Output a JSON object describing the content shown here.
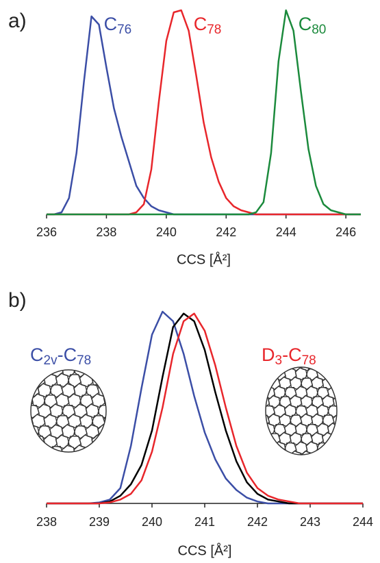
{
  "chart_data": [
    {
      "type": "line",
      "label": "a)",
      "xlabel": "CCS [Å²]",
      "xlim": [
        236,
        246.5
      ],
      "ylim": [
        0,
        1
      ],
      "xticks": [
        236,
        238,
        240,
        242,
        244,
        246
      ],
      "x": [
        236,
        236.25,
        236.5,
        236.75,
        237,
        237.25,
        237.5,
        237.75,
        238,
        238.25,
        238.5,
        238.75,
        239,
        239.25,
        239.5,
        239.75,
        240,
        240.25,
        240.5,
        240.75,
        241,
        241.25,
        241.5,
        241.75,
        242,
        242.25,
        242.5,
        242.75,
        243,
        243.25,
        243.5,
        243.75,
        244,
        244.25,
        244.5,
        244.75,
        245,
        245.25,
        245.5,
        245.75,
        246,
        246.25,
        246.5
      ],
      "series": [
        {
          "name": "C76",
          "color": "#3b4ea6",
          "values": [
            0,
            0,
            0.01,
            0.08,
            0.3,
            0.65,
            0.97,
            0.93,
            0.72,
            0.52,
            0.38,
            0.26,
            0.14,
            0.08,
            0.04,
            0.02,
            0.01,
            0,
            0,
            0,
            0,
            0,
            0,
            0,
            0,
            0,
            0,
            0,
            0,
            0,
            0,
            0,
            0,
            0,
            0,
            0,
            0,
            0,
            0,
            0,
            0,
            0,
            0
          ]
        },
        {
          "name": "C78",
          "color": "#e8262b",
          "values": [
            0,
            0,
            0,
            0,
            0,
            0,
            0,
            0,
            0,
            0,
            0,
            0,
            0.01,
            0.05,
            0.22,
            0.55,
            0.85,
            0.99,
            1.0,
            0.9,
            0.68,
            0.45,
            0.28,
            0.16,
            0.08,
            0.04,
            0.02,
            0.01,
            0,
            0,
            0,
            0,
            0,
            0,
            0,
            0,
            0,
            0,
            0,
            0,
            0,
            0,
            0
          ]
        },
        {
          "name": "C80",
          "color": "#1b8a3c",
          "values": [
            0,
            0,
            0,
            0,
            0,
            0,
            0,
            0,
            0,
            0,
            0,
            0,
            0,
            0,
            0,
            0,
            0,
            0,
            0,
            0,
            0,
            0,
            0,
            0,
            0,
            0,
            0,
            0,
            0.01,
            0.06,
            0.3,
            0.75,
            1.0,
            0.9,
            0.6,
            0.32,
            0.14,
            0.05,
            0.02,
            0.01,
            0,
            0,
            0
          ]
        }
      ]
    },
    {
      "type": "line",
      "label": "b)",
      "xlabel": "CCS [Å²]",
      "xlim": [
        238,
        244
      ],
      "ylim": [
        0,
        1
      ],
      "xticks": [
        238,
        239,
        240,
        241,
        242,
        243,
        244
      ],
      "x": [
        238,
        238.2,
        238.4,
        238.6,
        238.8,
        239,
        239.2,
        239.4,
        239.6,
        239.8,
        240,
        240.2,
        240.4,
        240.6,
        240.8,
        241,
        241.2,
        241.4,
        241.6,
        241.8,
        242,
        242.2,
        242.4,
        242.6,
        242.8,
        243,
        243.2,
        243.4,
        243.6,
        243.8,
        244
      ],
      "series": [
        {
          "name": "C2v-C78",
          "color": "#3b4ea6",
          "values": [
            0,
            0,
            0,
            0,
            0,
            0.005,
            0.02,
            0.08,
            0.3,
            0.6,
            0.88,
            1.0,
            0.95,
            0.78,
            0.56,
            0.37,
            0.23,
            0.13,
            0.07,
            0.03,
            0.01,
            0,
            0,
            0,
            0,
            0,
            0,
            0,
            0,
            0,
            0
          ]
        },
        {
          "color": "#000000",
          "values": [
            0,
            0,
            0,
            0,
            0,
            0,
            0.01,
            0.04,
            0.1,
            0.2,
            0.38,
            0.66,
            0.92,
            0.99,
            0.95,
            0.8,
            0.58,
            0.38,
            0.22,
            0.11,
            0.05,
            0.02,
            0.01,
            0,
            0,
            0,
            0,
            0,
            0,
            0,
            0
          ]
        },
        {
          "name": "D3-C78",
          "color": "#e8262b",
          "values": [
            0,
            0,
            0,
            0,
            0,
            0,
            0.005,
            0.02,
            0.05,
            0.12,
            0.27,
            0.5,
            0.78,
            0.95,
            0.99,
            0.9,
            0.72,
            0.5,
            0.3,
            0.16,
            0.08,
            0.04,
            0.02,
            0.01,
            0,
            0,
            0,
            0,
            0,
            0,
            0
          ]
        }
      ]
    }
  ]
}
